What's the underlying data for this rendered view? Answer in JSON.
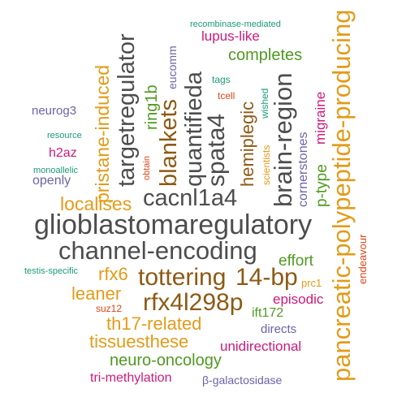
{
  "palette": {
    "gray": "#4d4d4d",
    "brown": "#8c5a14",
    "orange": "#e39b18",
    "green": "#4f9a21",
    "magenta": "#cc1a7a",
    "purple": "#6b63a6",
    "teal": "#1b9a78",
    "red": "#d9471a"
  },
  "words": [
    {
      "id": "glioblastomaregulatory",
      "text": "glioblastomaregulatory",
      "color": "gray"
    },
    {
      "id": "channel-encoding",
      "text": "channel-encoding",
      "color": "gray"
    },
    {
      "id": "cacnl1a4",
      "text": "cacnl1a4",
      "color": "gray"
    },
    {
      "id": "localises",
      "text": "localises",
      "color": "orange"
    },
    {
      "id": "tottering",
      "text": "tottering",
      "color": "brown"
    },
    {
      "id": "14-bp",
      "text": "14-bp",
      "color": "brown"
    },
    {
      "id": "rfx4l298p",
      "text": "rfx4l298p",
      "color": "brown"
    },
    {
      "id": "rfx6",
      "text": "rfx6",
      "color": "orange"
    },
    {
      "id": "leaner",
      "text": "leaner",
      "color": "orange"
    },
    {
      "id": "th17-related",
      "text": "th17-related",
      "color": "orange"
    },
    {
      "id": "tissuesthese",
      "text": "tissuesthese",
      "color": "orange"
    },
    {
      "id": "neuro-oncology",
      "text": "neuro-oncology",
      "color": "green"
    },
    {
      "id": "tri-methylation",
      "text": "tri-methylation",
      "color": "magenta"
    },
    {
      "id": "beta-galactosidase",
      "text": "β-galactosidase",
      "color": "purple"
    },
    {
      "id": "unidirectional",
      "text": "unidirectional",
      "color": "magenta"
    },
    {
      "id": "directs",
      "text": "directs",
      "color": "purple"
    },
    {
      "id": "ift172",
      "text": "ift172",
      "color": "green"
    },
    {
      "id": "episodic",
      "text": "episodic",
      "color": "magenta"
    },
    {
      "id": "effort",
      "text": "effort",
      "color": "green"
    },
    {
      "id": "prc1",
      "text": "prc1",
      "color": "orange"
    },
    {
      "id": "suz12",
      "text": "suz12",
      "color": "red"
    },
    {
      "id": "testis-specific",
      "text": "testis-specific",
      "color": "teal"
    },
    {
      "id": "openly",
      "text": "openly",
      "color": "purple"
    },
    {
      "id": "monoallelic",
      "text": "monoallelic",
      "color": "teal"
    },
    {
      "id": "h2az",
      "text": "h2az",
      "color": "magenta"
    },
    {
      "id": "resource",
      "text": "resource",
      "color": "teal"
    },
    {
      "id": "neurog3",
      "text": "neurog3",
      "color": "purple"
    },
    {
      "id": "lupus-like",
      "text": "lupus-like",
      "color": "magenta"
    },
    {
      "id": "completes",
      "text": "completes",
      "color": "green"
    },
    {
      "id": "recombinase-mediated",
      "text": "recombinase-mediated",
      "color": "teal"
    },
    {
      "id": "tags",
      "text": "tags",
      "color": "teal"
    },
    {
      "id": "tcell",
      "text": "tcell",
      "color": "red"
    },
    {
      "id": "pristane-induced",
      "text": "pristane-induced",
      "color": "orange"
    },
    {
      "id": "targetregulator",
      "text": "targetregulator",
      "color": "gray"
    },
    {
      "id": "ring1b",
      "text": "ring1b",
      "color": "green"
    },
    {
      "id": "eucomm",
      "text": "eucomm",
      "color": "purple"
    },
    {
      "id": "obtain",
      "text": "obtain",
      "color": "red"
    },
    {
      "id": "blankets",
      "text": "blankets",
      "color": "brown"
    },
    {
      "id": "quantifieda",
      "text": "quantifieda",
      "color": "gray"
    },
    {
      "id": "spata4",
      "text": "spata4",
      "color": "gray"
    },
    {
      "id": "hemiplegic",
      "text": "hemiplegic",
      "color": "brown"
    },
    {
      "id": "brain-region",
      "text": "brain-region",
      "color": "gray"
    },
    {
      "id": "wished",
      "text": "wished",
      "color": "teal"
    },
    {
      "id": "scientists",
      "text": "scientists",
      "color": "orange"
    },
    {
      "id": "cornerstones",
      "text": "cornerstones",
      "color": "purple"
    },
    {
      "id": "p-type",
      "text": "p-type",
      "color": "green"
    },
    {
      "id": "migraine",
      "text": "migraine",
      "color": "magenta"
    },
    {
      "id": "pancreatic-polypeptide-producing",
      "text": "pancreatic-polypeptide-producing",
      "color": "orange"
    },
    {
      "id": "endeavour",
      "text": "endeavour",
      "color": "red"
    }
  ]
}
